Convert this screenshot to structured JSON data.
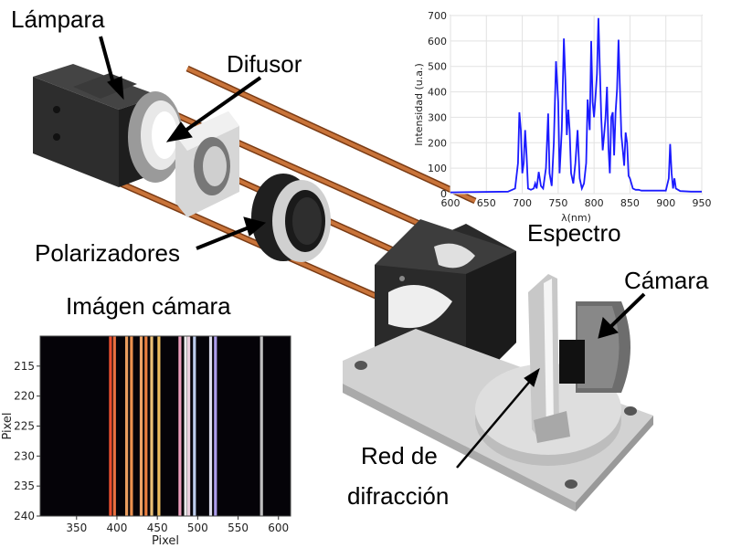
{
  "labels": {
    "lamp": "Lámpara",
    "diffuser": "Difusor",
    "polarizers": "Polarizadores",
    "camera": "Cámara",
    "grating_line1": "Red de",
    "grating_line2": "difracción",
    "spectrum_title": "Espectro",
    "camera_image_title": "Imágen cámara"
  },
  "colors": {
    "spectrum_line": "#1a1aff",
    "rod": "#b5652a",
    "dark_part": "#2a2a2a",
    "light_part": "#d8d8d8"
  },
  "chart_data": [
    {
      "type": "line",
      "name": "spectrum",
      "xlabel": "λ(nm)",
      "ylabel": "Intensidad (u.a.)",
      "xlim": [
        600,
        950
      ],
      "ylim": [
        0,
        700
      ],
      "xticks": [
        600,
        650,
        700,
        750,
        800,
        850,
        900,
        950
      ],
      "yticks": [
        0,
        100,
        200,
        300,
        400,
        500,
        600,
        700
      ],
      "grid": true,
      "series": [
        {
          "x": [
            600,
            680,
            690,
            694,
            696,
            698,
            700,
            702,
            704,
            706,
            708,
            712,
            716,
            718,
            720,
            723,
            726,
            729,
            733,
            736,
            738,
            741,
            744,
            747,
            750,
            752,
            755,
            758,
            760,
            762,
            764,
            766,
            768,
            771,
            774,
            777,
            780,
            783,
            786,
            789,
            791,
            794,
            796,
            798,
            800,
            802,
            804,
            806,
            808,
            810,
            812,
            814,
            816,
            818,
            820,
            822,
            824,
            826,
            828,
            830,
            832,
            834,
            836,
            838,
            840,
            842,
            844,
            846,
            848,
            850,
            852,
            854,
            858,
            862,
            866,
            870,
            880,
            890,
            900,
            904,
            906,
            908,
            910,
            912,
            914,
            920,
            935,
            950
          ],
          "y": [
            5,
            8,
            20,
            120,
            320,
            250,
            80,
            120,
            250,
            150,
            20,
            15,
            20,
            40,
            20,
            85,
            30,
            20,
            100,
            315,
            80,
            30,
            200,
            520,
            360,
            80,
            250,
            610,
            450,
            230,
            330,
            250,
            80,
            40,
            120,
            250,
            60,
            20,
            40,
            120,
            370,
            250,
            600,
            360,
            300,
            380,
            470,
            690,
            500,
            300,
            170,
            230,
            300,
            420,
            180,
            80,
            300,
            320,
            150,
            320,
            410,
            605,
            420,
            230,
            170,
            110,
            240,
            200,
            70,
            60,
            40,
            20,
            15,
            15,
            12,
            12,
            12,
            12,
            12,
            60,
            195,
            80,
            20,
            60,
            20,
            10,
            8,
            8
          ]
        }
      ]
    },
    {
      "type": "heatmap",
      "name": "camera-image",
      "xlabel": "Pixel",
      "ylabel": "Pixel",
      "xlim": [
        305,
        615
      ],
      "ylim": [
        240,
        210
      ],
      "xticks": [
        350,
        400,
        450,
        500,
        550,
        600
      ],
      "yticks": [
        215,
        220,
        225,
        230,
        235,
        240
      ],
      "lines": [
        {
          "x": 392,
          "color": "#ff5533"
        },
        {
          "x": 397,
          "color": "#ff7a44"
        },
        {
          "x": 412,
          "color": "#ffaa66"
        },
        {
          "x": 418,
          "color": "#ff9c55"
        },
        {
          "x": 430,
          "color": "#ffb070"
        },
        {
          "x": 436,
          "color": "#ff8a44"
        },
        {
          "x": 443,
          "color": "#ffd080"
        },
        {
          "x": 452,
          "color": "#ffcc66"
        },
        {
          "x": 478,
          "color": "#ffaacc"
        },
        {
          "x": 485,
          "color": "#ffffff"
        },
        {
          "x": 489,
          "color": "#ffe0f0"
        },
        {
          "x": 496,
          "color": "#ccddff"
        },
        {
          "x": 516,
          "color": "#eeeeff"
        },
        {
          "x": 522,
          "color": "#bbaaff"
        },
        {
          "x": 579,
          "color": "#cfcfcf"
        }
      ]
    }
  ]
}
